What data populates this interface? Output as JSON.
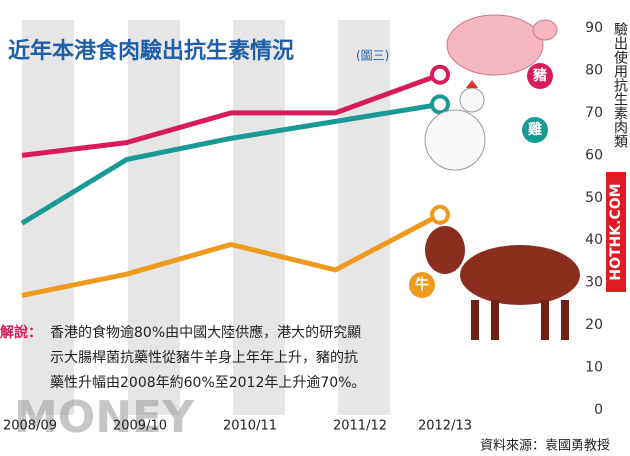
{
  "chart_data": {
    "type": "line",
    "title": "近年本港食肉驗出抗生素情況",
    "subtitle": "(圖三)",
    "y_label": "驗出使用抗生素肉類",
    "categories": [
      "2008/09",
      "2009/10",
      "2010/11",
      "2011/12",
      "2012/13"
    ],
    "series": [
      {
        "name": "豬",
        "color": "#d81b5a",
        "values": [
          60,
          63,
          70,
          70,
          79
        ]
      },
      {
        "name": "雞",
        "color": "#1a9a95",
        "values": [
          44,
          59,
          64,
          68,
          72
        ]
      },
      {
        "name": "牛",
        "color": "#ef9a1e",
        "values": [
          27,
          32,
          39,
          33,
          46
        ]
      }
    ],
    "ylim": [
      0,
      90
    ],
    "yticks": [
      0,
      10,
      20,
      30,
      40,
      50,
      60,
      70,
      80,
      90
    ],
    "annotation_label": "解說：",
    "annotation_lines": [
      "香港的食物逾80%由中國大陸供應，港大的研究顯",
      "示大腸桿菌抗藥性從豬牛羊身上年年上升，豬的抗",
      "藥性升幅由2008年約60%至2012年上升逾70%。"
    ],
    "source": "資料來源：袁國勇教授",
    "watermark": "HOTHK.COM",
    "logo": "MONEY"
  }
}
